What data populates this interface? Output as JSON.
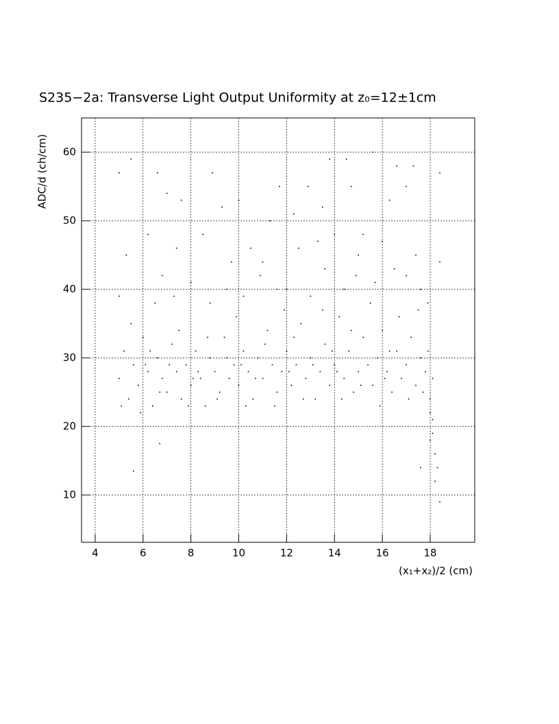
{
  "chart_data": {
    "type": "scatter",
    "title": "S235−2a: Transverse Light Output Uniformity at z₀=12±1cm",
    "x_label": "(x₁+x₂)/2 (cm)",
    "y_label": "ADC/d (ch/cm)",
    "xlim": [
      3.43,
      19.86
    ],
    "ylim": [
      3.1,
      65
    ],
    "xticks": [
      4,
      6,
      8,
      10,
      12,
      14,
      16,
      18
    ],
    "yticks": [
      10,
      20,
      30,
      40,
      50,
      60
    ],
    "grid": true,
    "color": "#000000",
    "x": [
      5.0,
      5.2,
      5.4,
      5.6,
      5.8,
      6.0,
      6.2,
      6.4,
      6.6,
      6.8,
      7.0,
      7.2,
      7.4,
      7.6,
      7.8,
      8.0,
      8.2,
      8.4,
      8.6,
      8.8,
      9.0,
      9.2,
      9.4,
      9.6,
      9.8,
      10.0,
      10.2,
      10.4,
      10.6,
      10.8,
      11.0,
      11.2,
      11.4,
      11.6,
      11.8,
      12.0,
      12.2,
      12.4,
      12.6,
      12.8,
      13.0,
      13.2,
      13.4,
      13.6,
      13.8,
      14.0,
      14.2,
      14.4,
      14.6,
      14.8,
      15.0,
      15.2,
      15.4,
      15.6,
      15.8,
      16.0,
      16.2,
      16.4,
      16.6,
      16.8,
      17.0,
      17.2,
      17.4,
      17.6,
      17.8,
      18.0,
      18.1,
      18.0,
      18.2,
      18.1,
      18.3,
      18.2,
      18.0,
      17.9,
      18.1,
      5.1,
      5.5,
      5.9,
      6.3,
      6.7,
      7.1,
      7.5,
      7.9,
      8.3,
      8.7,
      9.1,
      9.5,
      9.9,
      10.3,
      10.7,
      11.1,
      11.5,
      11.9,
      12.3,
      12.7,
      13.1,
      13.5,
      13.9,
      14.3,
      14.7,
      15.1,
      15.5,
      15.9,
      16.3,
      16.7,
      17.1,
      17.5,
      17.7,
      16.1,
      14.1,
      12.1,
      10.1,
      8.1,
      6.1,
      5.0,
      5.5,
      6.6,
      7.0,
      7.6,
      8.9,
      9.3,
      10.0,
      10.5,
      11.3,
      11.7,
      12.3,
      12.9,
      13.5,
      13.8,
      14.5,
      14.7,
      15.2,
      15.6,
      16.3,
      16.6,
      17.0,
      17.3,
      18.4,
      6.2,
      7.4,
      8.5,
      9.7,
      11.0,
      12.5,
      13.3,
      14.0,
      15.0,
      16.0,
      17.4,
      5.3,
      6.8,
      8.0,
      9.5,
      10.9,
      12.0,
      13.6,
      14.9,
      16.5,
      17.6,
      18.4,
      5.0,
      6.5,
      7.3,
      8.8,
      10.2,
      11.6,
      13.0,
      14.4,
      15.7,
      17.0,
      17.9,
      5.6,
      6.7,
      18.4,
      17.6
    ],
    "values": [
      27,
      31,
      24,
      29,
      26,
      33,
      28,
      23,
      30,
      27,
      25,
      32,
      28,
      24,
      29,
      26,
      31,
      27,
      23,
      30,
      28,
      25,
      33,
      27,
      29,
      26,
      31,
      28,
      24,
      30,
      27,
      34,
      29,
      25,
      28,
      31,
      26,
      29,
      35,
      27,
      30,
      24,
      28,
      32,
      26,
      29,
      36,
      27,
      31,
      25,
      28,
      33,
      29,
      26,
      30,
      34,
      28,
      25,
      31,
      27,
      29,
      33,
      26,
      30,
      28,
      24,
      21,
      18,
      16,
      19,
      14,
      12,
      22,
      31,
      27,
      23,
      35,
      22,
      31,
      25,
      29,
      34,
      23,
      28,
      33,
      24,
      30,
      36,
      23,
      27,
      32,
      23,
      37,
      33,
      24,
      29,
      37,
      31,
      24,
      34,
      26,
      38,
      23,
      31,
      36,
      24,
      37,
      25,
      27,
      28,
      28,
      29,
      27,
      29,
      57,
      59,
      57,
      54,
      53,
      57,
      52,
      53,
      46,
      50,
      55,
      51,
      55,
      52,
      59,
      59,
      55,
      48,
      60,
      53,
      58,
      55,
      58,
      57,
      48,
      46,
      48,
      44,
      44,
      46,
      47,
      48,
      45,
      47,
      45,
      45,
      42,
      41,
      40,
      42,
      40,
      43,
      42,
      43,
      40,
      44,
      39,
      38,
      39,
      38,
      39,
      40,
      39,
      40,
      41,
      42,
      38,
      13.5,
      17.5,
      9,
      14
    ]
  }
}
